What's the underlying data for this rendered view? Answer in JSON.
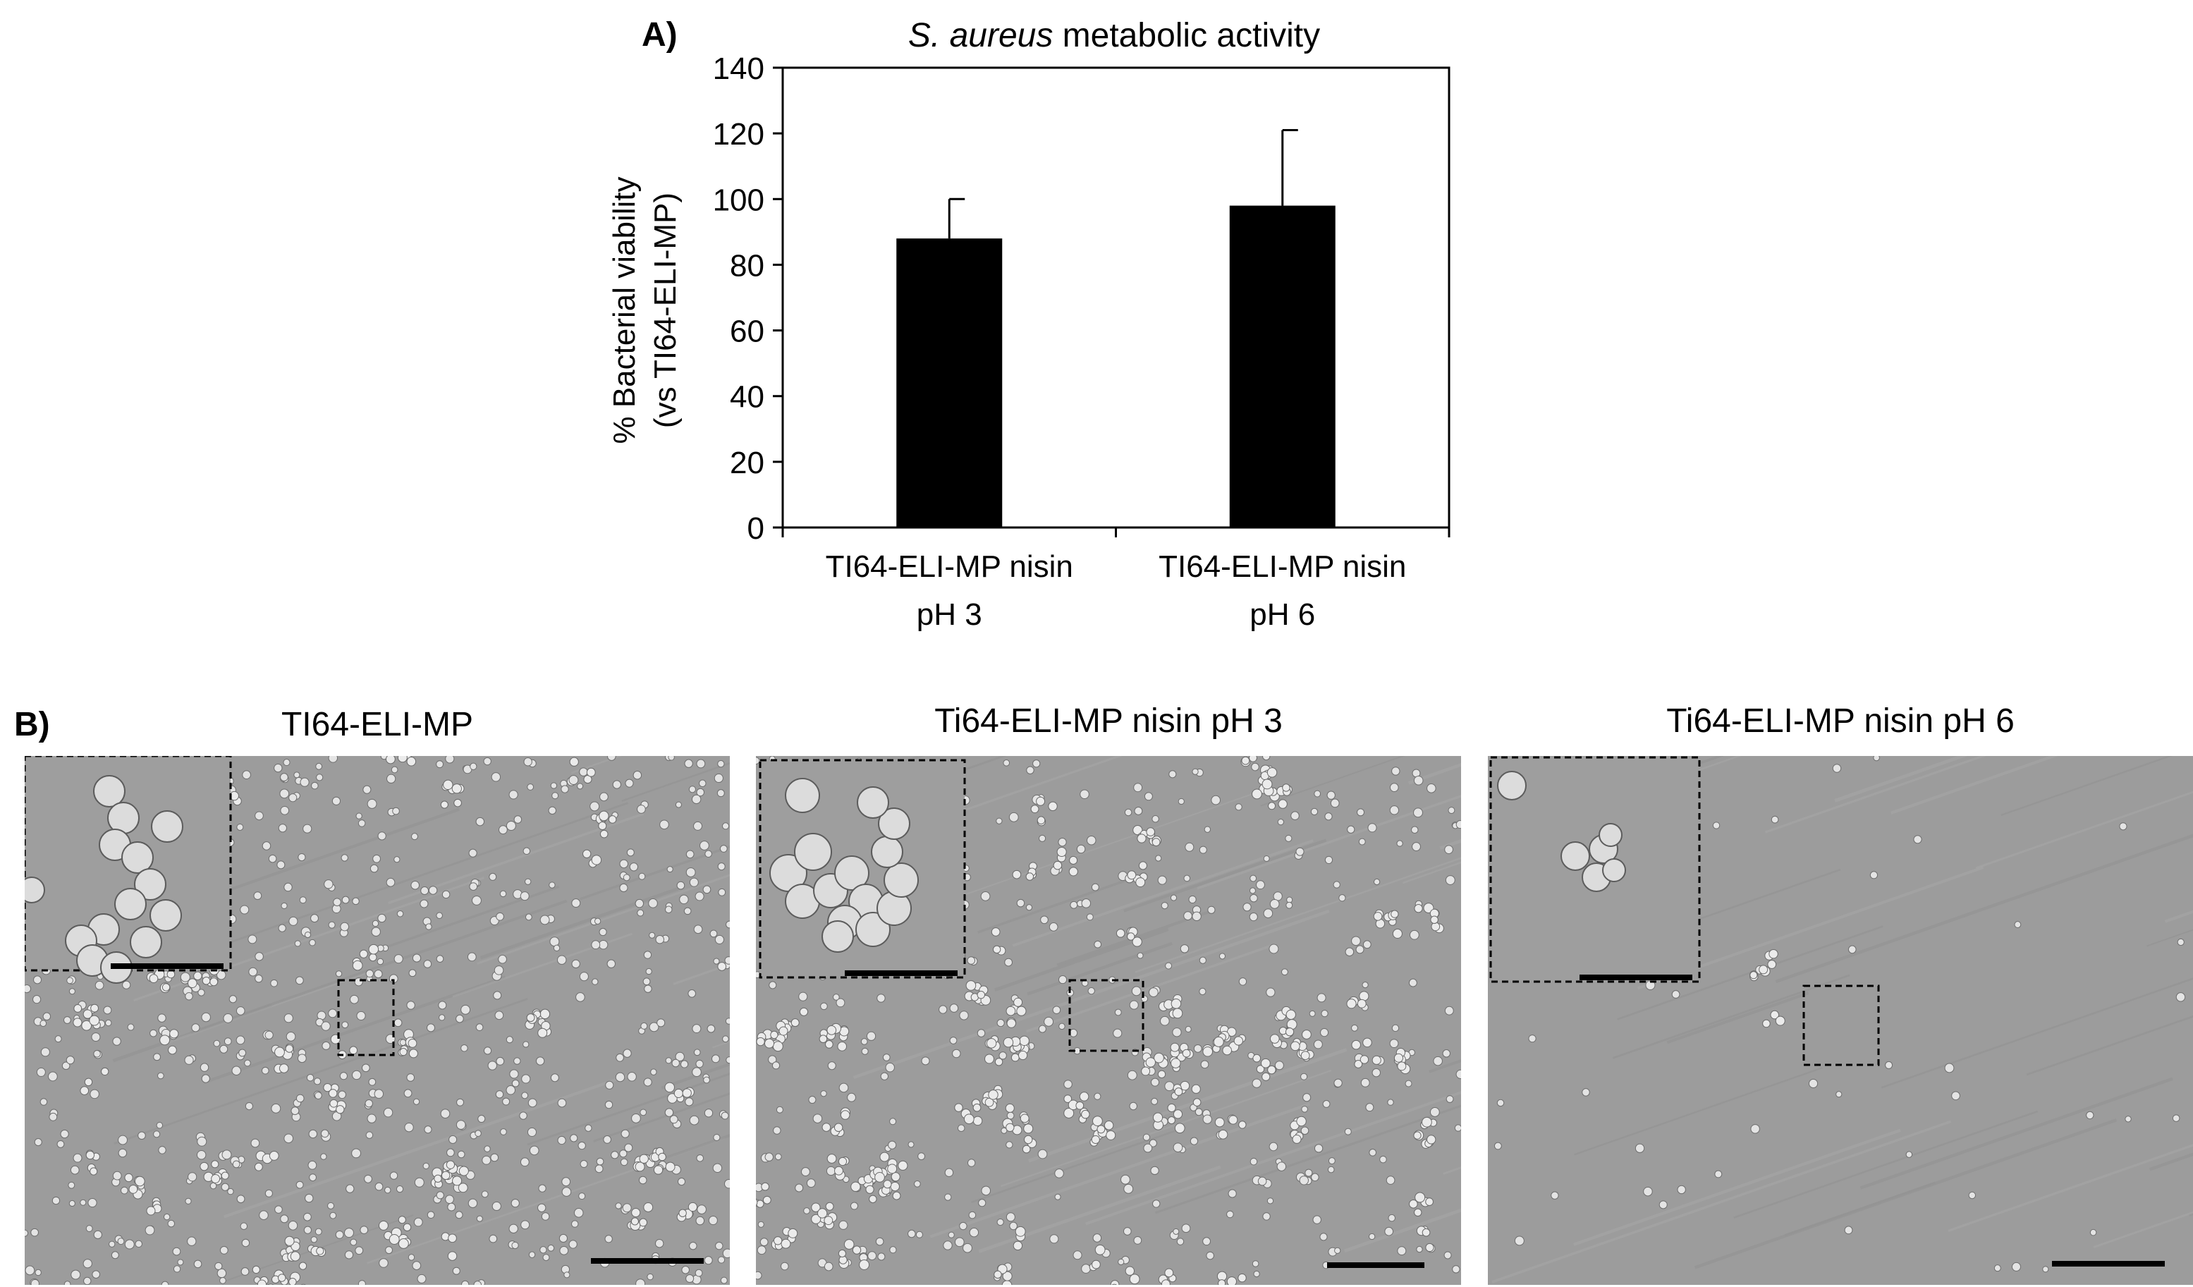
{
  "panel_a": {
    "label": "A)",
    "title_italic": "S. aureus",
    "title_rest": " metabolic activity",
    "ylabel_line1": "% Bacterial viability",
    "ylabel_line2": "(vs TI64-ELI-MP)",
    "bar_color": "#000000"
  },
  "chart_data": {
    "type": "bar",
    "title": "S. aureus metabolic activity",
    "xlabel": "",
    "ylabel": "% Bacterial viability (vs TI64-ELI-MP)",
    "categories": [
      "TI64-ELI-MP nisin pH 3",
      "TI64-ELI-MP nisin pH 6"
    ],
    "category_lines": [
      [
        "TI64-ELI-MP nisin",
        "pH 3"
      ],
      [
        "TI64-ELI-MP nisin",
        "pH 6"
      ]
    ],
    "values": [
      88,
      98
    ],
    "error_plus": [
      12,
      23
    ],
    "ylim": [
      0,
      140
    ],
    "yticks": [
      0,
      20,
      40,
      60,
      80,
      100,
      120,
      140
    ],
    "grid": false
  },
  "panel_b": {
    "label": "B)",
    "images": [
      {
        "title": "TI64-ELI-MP",
        "density": "high"
      },
      {
        "title": "Ti64-ELI-MP nisin pH 3",
        "density": "medium"
      },
      {
        "title": "Ti64-ELI-MP nisin pH 6",
        "density": "low"
      }
    ]
  }
}
